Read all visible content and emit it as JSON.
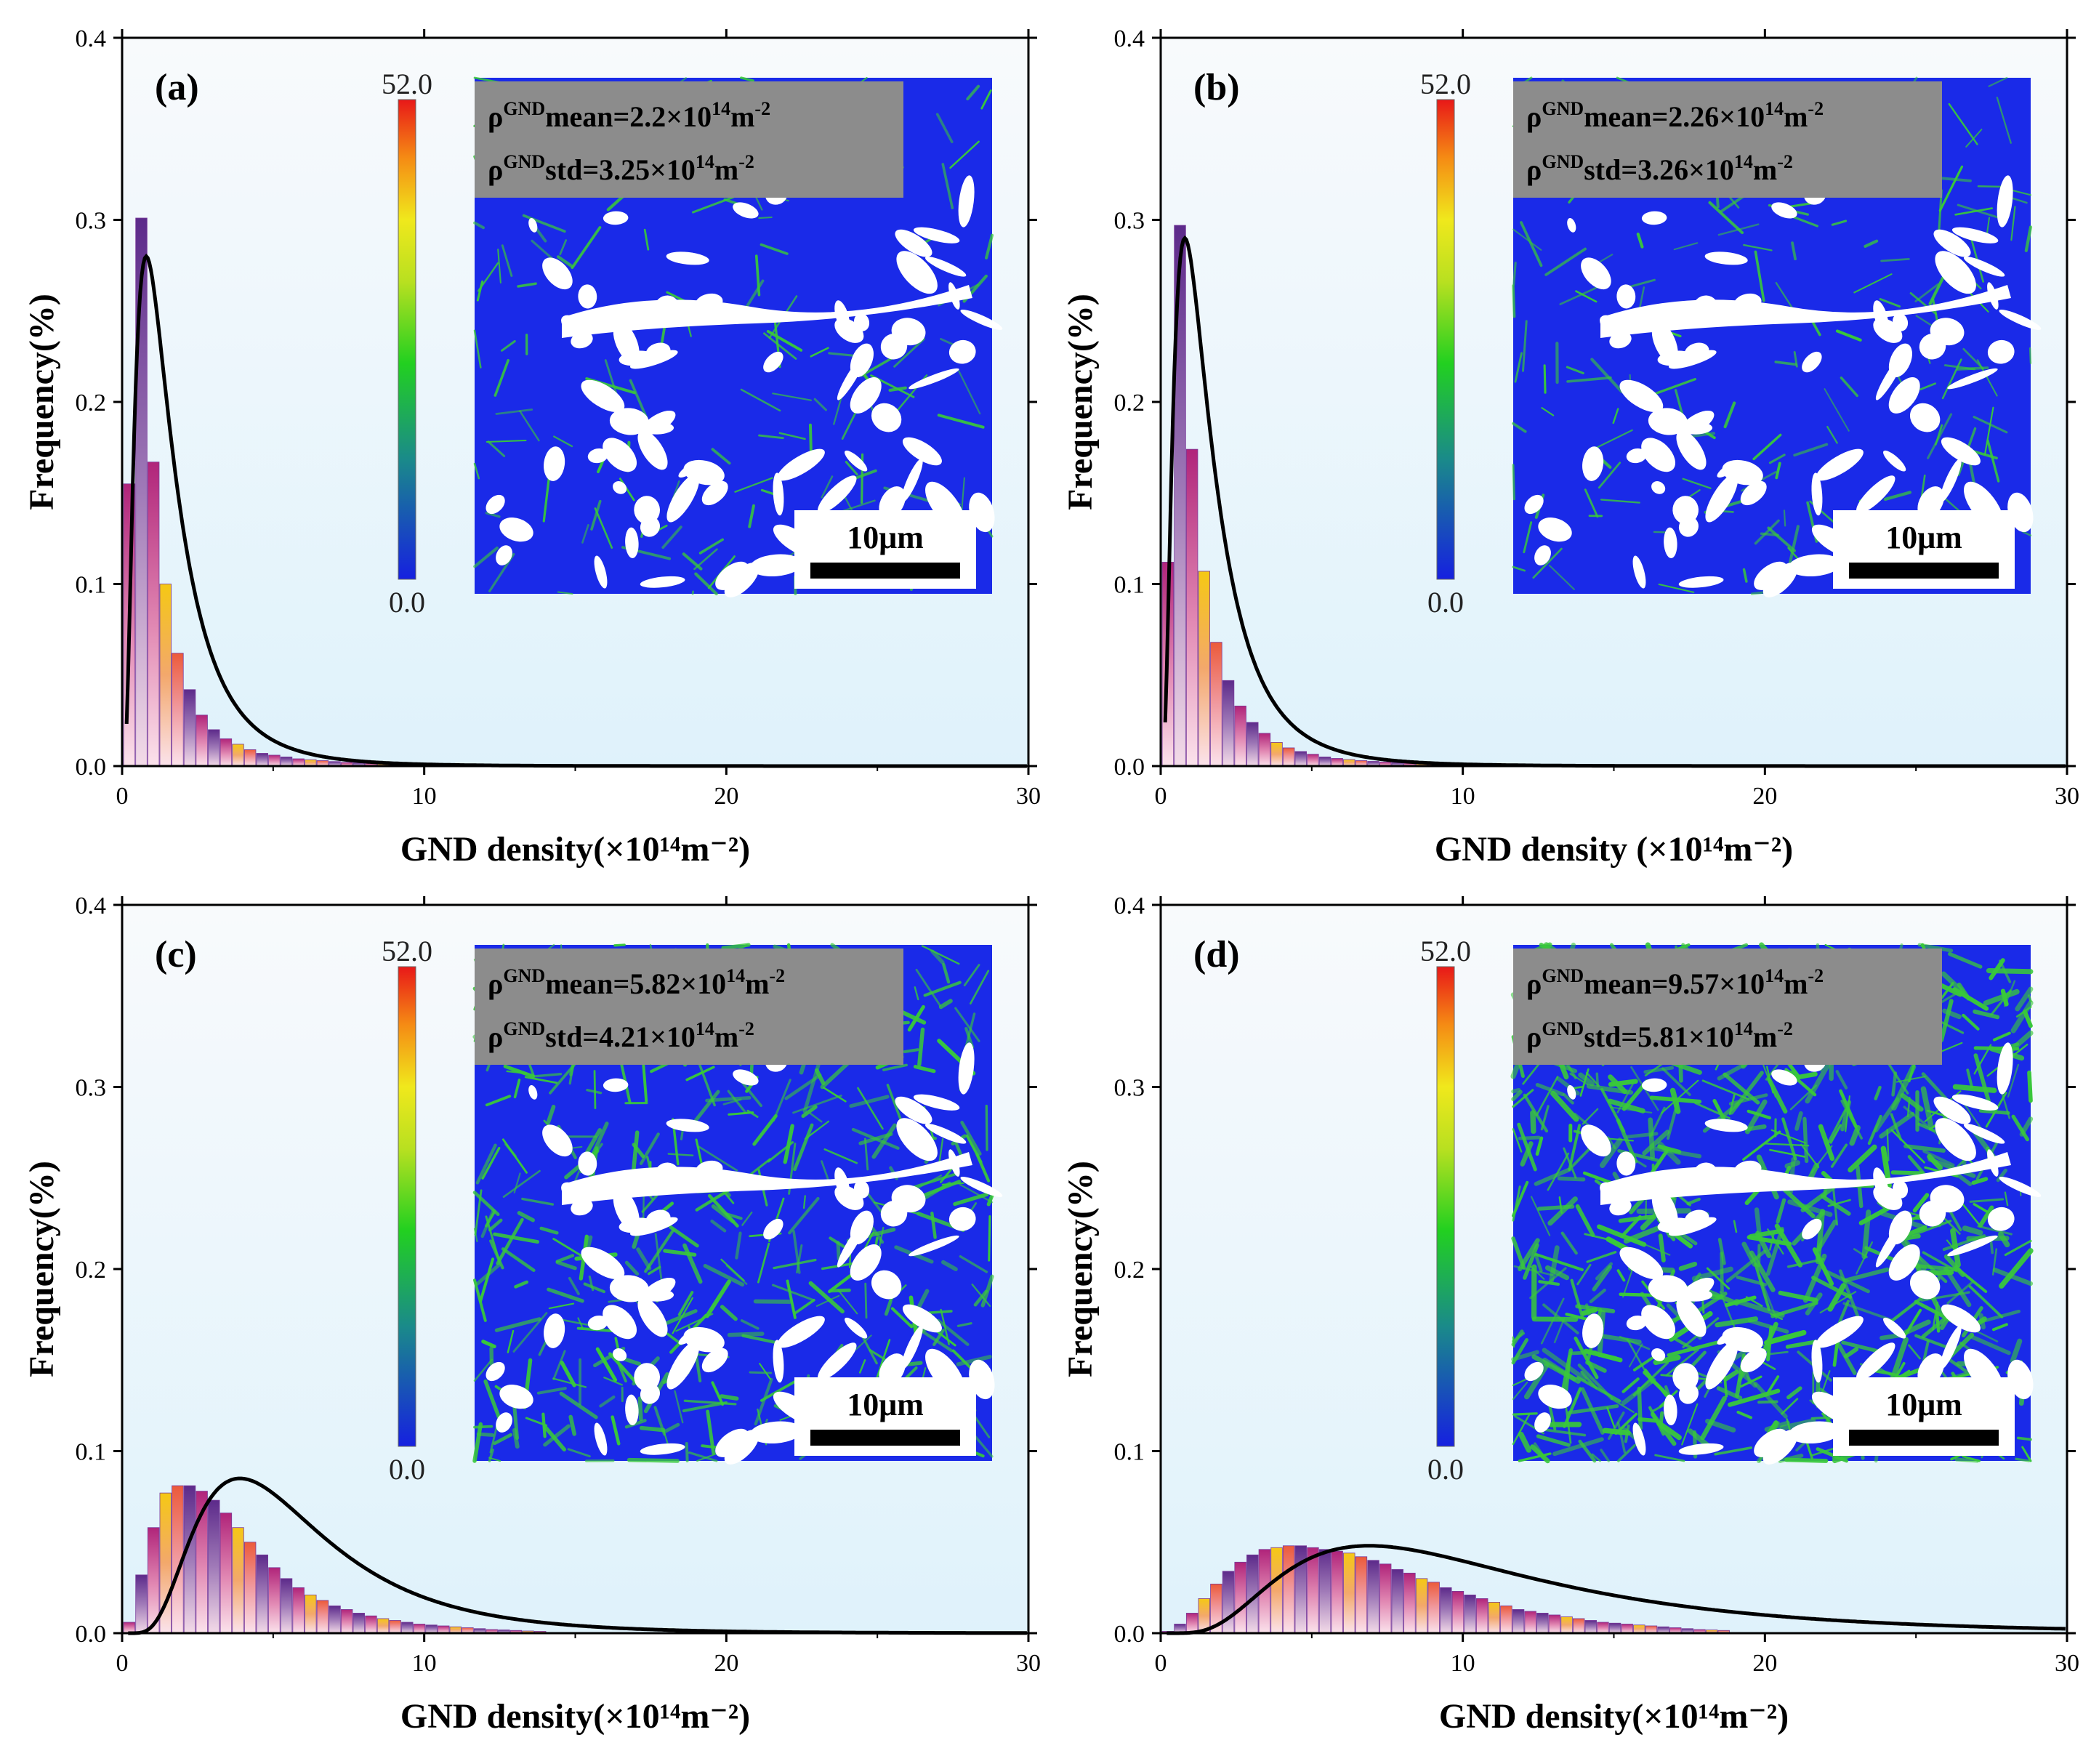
{
  "colors": {
    "plot_bg_top": "#f8fafc",
    "plot_bg_bottom": "#e1f3fb",
    "map_blue": "#1a2ae8",
    "map_green": "#39c83a",
    "grain_white": "#ffffff",
    "stat_box": "#8c8c8c",
    "fit_line": "#000000"
  },
  "colorbar": {
    "max": "52.0",
    "min": "0.0"
  },
  "scale_bar": "10μm",
  "chart_data": [
    {
      "id": "a",
      "label": "(a)",
      "type": "bar",
      "xlabel": "GND density(×10¹⁴m⁻²)",
      "ylabel": "Frequency(%)",
      "xlim": [
        0,
        30
      ],
      "ylim": [
        0,
        0.4
      ],
      "xticks": [
        "0",
        "10",
        "20",
        "30"
      ],
      "yticks": [
        "0.0",
        "0.1",
        "0.2",
        "0.3",
        "0.4"
      ],
      "bin_width": 0.4,
      "values": [
        0.155,
        0.301,
        0.167,
        0.1,
        0.062,
        0.042,
        0.028,
        0.02,
        0.015,
        0.012,
        0.009,
        0.007,
        0.006,
        0.005,
        0.004,
        0.0035,
        0.003,
        0.0025,
        0.002,
        0.0018,
        0.0015,
        0.0013,
        0.0011,
        0.001,
        0.0009,
        0.0008,
        0.0007,
        0.0006,
        0.0005,
        0.0005
      ],
      "fit": {
        "type": "lognormal",
        "peak_x": 0.8,
        "peak_y": 0.28
      },
      "stats": {
        "mean_prefix": "ρ",
        "mean_sup": "GND",
        "mean_text": "mean=2.2×10",
        "mean_exp": "14",
        "mean_unit": "m",
        "mean_unit_exp": "-2",
        "std_prefix": "ρ",
        "std_sup": "GND",
        "std_text": "std=3.25×10",
        "std_exp": "14",
        "std_unit": "m",
        "std_unit_exp": "-2"
      },
      "map_green_level": 0.05
    },
    {
      "id": "b",
      "label": "(b)",
      "type": "bar",
      "xlabel": "GND density (×10¹⁴m⁻²)",
      "ylabel": "Frequency(%)",
      "xlim": [
        0,
        30
      ],
      "ylim": [
        0,
        0.4
      ],
      "xticks": [
        "0",
        "10",
        "20",
        "30"
      ],
      "yticks": [
        "0.0",
        "0.1",
        "0.2",
        "0.3",
        "0.4"
      ],
      "bin_width": 0.4,
      "values": [
        0.112,
        0.297,
        0.174,
        0.107,
        0.068,
        0.047,
        0.033,
        0.024,
        0.018,
        0.013,
        0.01,
        0.008,
        0.0065,
        0.005,
        0.0042,
        0.0036,
        0.003,
        0.0026,
        0.0022,
        0.0019,
        0.0016,
        0.0013,
        0.0011,
        0.001,
        0.0009,
        0.0008,
        0.0007,
        0.0006,
        0.0005,
        0.0005
      ],
      "fit": {
        "type": "lognormal",
        "peak_x": 0.8,
        "peak_y": 0.29
      },
      "stats": {
        "mean_prefix": "ρ",
        "mean_sup": "GND",
        "mean_text": "mean=2.26×10",
        "mean_exp": "14",
        "mean_unit": "m",
        "mean_unit_exp": "-2",
        "std_prefix": "ρ",
        "std_sup": "GND",
        "std_text": "std=3.26×10",
        "std_exp": "14",
        "std_unit": "m",
        "std_unit_exp": "-2"
      },
      "map_green_level": 0.06
    },
    {
      "id": "c",
      "label": "(c)",
      "type": "bar",
      "xlabel": "GND density(×10¹⁴m⁻²)",
      "ylabel": "Frequency(%)",
      "xlim": [
        0,
        30
      ],
      "ylim": [
        0,
        0.4
      ],
      "xticks": [
        "0",
        "10",
        "20",
        "30"
      ],
      "yticks": [
        "0.0",
        "0.1",
        "0.2",
        "0.3",
        "0.4"
      ],
      "bin_width": 0.4,
      "values": [
        0.006,
        0.032,
        0.058,
        0.077,
        0.081,
        0.081,
        0.078,
        0.073,
        0.066,
        0.058,
        0.05,
        0.043,
        0.036,
        0.03,
        0.025,
        0.021,
        0.018,
        0.015,
        0.013,
        0.011,
        0.0095,
        0.008,
        0.007,
        0.006,
        0.005,
        0.0045,
        0.004,
        0.0035,
        0.003,
        0.0025,
        0.002,
        0.0018,
        0.0015,
        0.0012,
        0.001
      ],
      "fit": {
        "type": "lognormal",
        "peak_x": 3.9,
        "peak_y": 0.085
      },
      "stats": {
        "mean_prefix": "ρ",
        "mean_sup": "GND",
        "mean_text": "mean=5.82×10",
        "mean_exp": "14",
        "mean_unit": "m",
        "mean_unit_exp": "-2",
        "std_prefix": "ρ",
        "std_sup": "GND",
        "std_text": "std=4.21×10",
        "std_exp": "14",
        "std_unit": "m",
        "std_unit_exp": "-2"
      },
      "map_green_level": 0.35
    },
    {
      "id": "d",
      "label": "(d)",
      "type": "bar",
      "xlabel": "GND density(×10¹⁴m⁻²)",
      "ylabel": "Frequency(%)",
      "xlim": [
        0,
        30
      ],
      "ylim": [
        0,
        0.4
      ],
      "xticks": [
        "0",
        "10",
        "20",
        "30"
      ],
      "yticks": [
        "0.0",
        "0.1",
        "0.2",
        "0.3",
        "0.4"
      ],
      "bin_width": 0.4,
      "values": [
        0.001,
        0.005,
        0.011,
        0.019,
        0.027,
        0.034,
        0.039,
        0.043,
        0.046,
        0.047,
        0.048,
        0.048,
        0.047,
        0.046,
        0.045,
        0.044,
        0.042,
        0.04,
        0.038,
        0.035,
        0.033,
        0.03,
        0.028,
        0.025,
        0.023,
        0.021,
        0.019,
        0.017,
        0.015,
        0.013,
        0.012,
        0.011,
        0.01,
        0.009,
        0.008,
        0.007,
        0.006,
        0.0055,
        0.005,
        0.0045,
        0.004,
        0.0035,
        0.003,
        0.0025,
        0.002,
        0.0018,
        0.0015
      ],
      "fit": {
        "type": "lognormal",
        "peak_x": 6.9,
        "peak_y": 0.048
      },
      "stats": {
        "mean_prefix": "ρ",
        "mean_sup": "GND",
        "mean_text": "mean=9.57×10",
        "mean_exp": "14",
        "mean_unit": "m",
        "mean_unit_exp": "-2",
        "std_prefix": "ρ",
        "std_sup": "GND",
        "std_text": "std=5.81×10",
        "std_exp": "14",
        "std_unit": "m",
        "std_unit_exp": "-2"
      },
      "map_green_level": 0.7
    }
  ]
}
